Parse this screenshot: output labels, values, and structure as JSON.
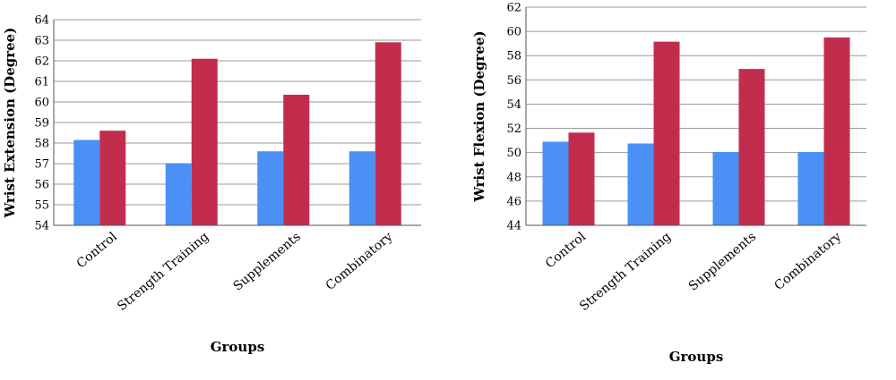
{
  "colors": {
    "series_a": "#4a90f5",
    "series_b": "#c22d4e",
    "grid": "#9a9a9a",
    "axis": "#555555"
  },
  "chart_data": [
    {
      "type": "bar",
      "categories": [
        "Control",
        "Strength Training",
        "Supplements",
        "Combinatory"
      ],
      "series": [
        {
          "values": [
            58.15,
            57.0,
            57.6,
            57.6
          ],
          "color": "#4a90f5"
        },
        {
          "values": [
            58.6,
            62.1,
            60.35,
            62.9
          ],
          "color": "#c22d4e"
        }
      ],
      "xlabel": "Groups",
      "ylabel": "Wrist Extension (Degree)",
      "ylim": [
        54,
        64
      ],
      "yticks": [
        "54",
        "55",
        "56",
        "57",
        "58",
        "59",
        "60",
        "61",
        "62",
        "63",
        "64"
      ],
      "grid": true
    },
    {
      "type": "bar",
      "categories": [
        "Control",
        "Strength Training",
        "Supplements",
        "Combinatory"
      ],
      "series": [
        {
          "values": [
            50.9,
            50.75,
            50.05,
            50.05
          ],
          "color": "#4a90f5"
        },
        {
          "values": [
            51.65,
            59.15,
            56.9,
            59.5
          ],
          "color": "#c22d4e"
        }
      ],
      "xlabel": "Groups",
      "ylabel": "Wrist Flexion (Degree)",
      "ylim": [
        44,
        62
      ],
      "yticks": [
        "44",
        "46",
        "48",
        "50",
        "52",
        "54",
        "56",
        "58",
        "60",
        "62"
      ],
      "grid": true
    }
  ]
}
